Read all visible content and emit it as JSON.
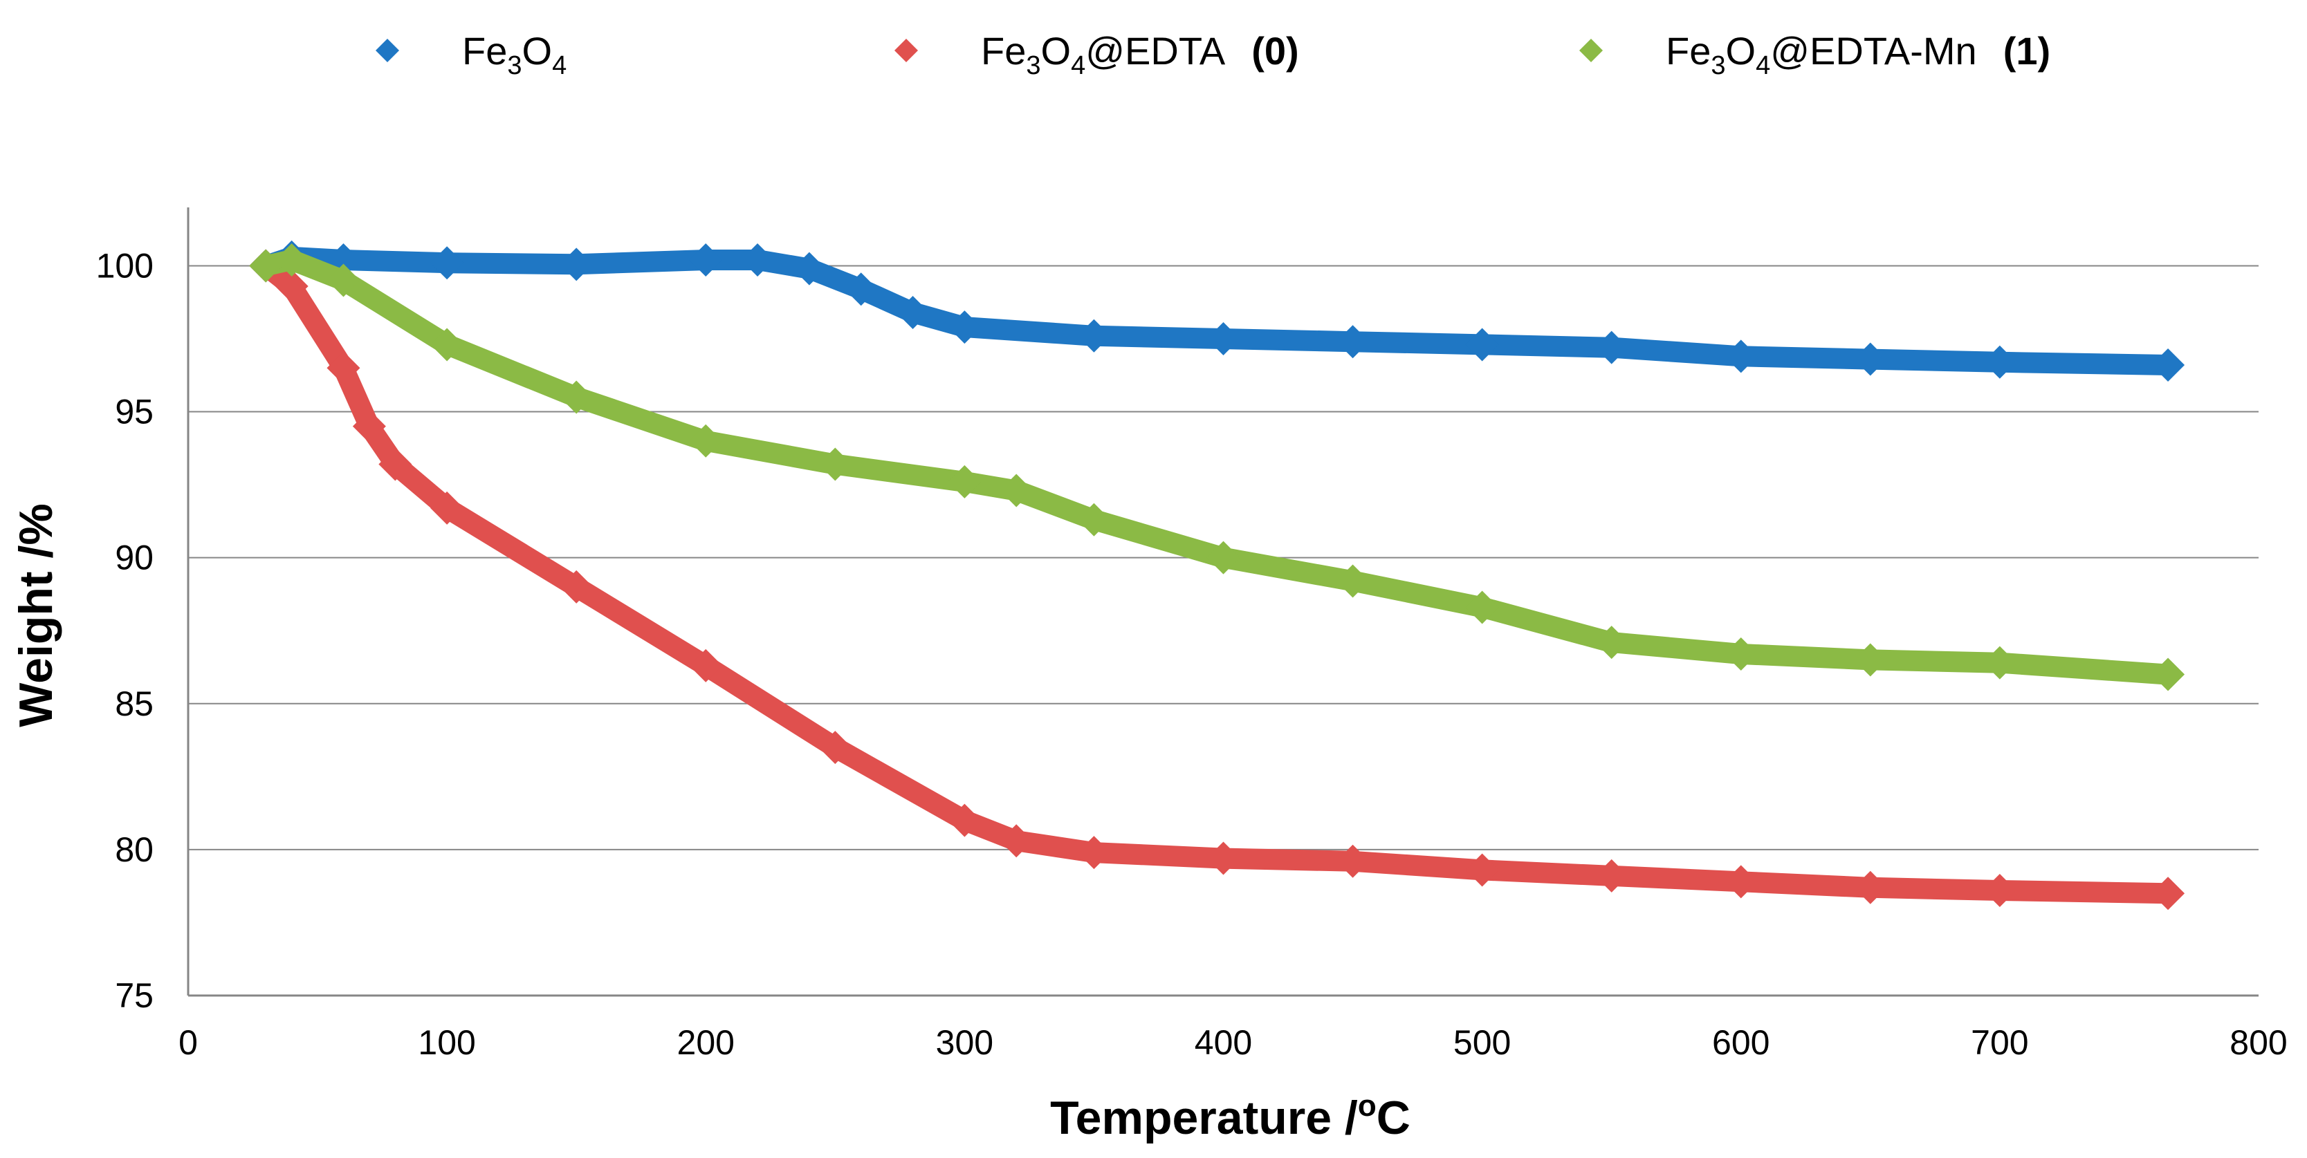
{
  "chart_data": {
    "type": "line",
    "title": "",
    "xlabel": "Temperature /°C",
    "xlabel_parts": [
      "Temperature /",
      "o",
      "C"
    ],
    "ylabel": "Weight /%",
    "xlim": [
      0,
      800
    ],
    "ylim": [
      75,
      102
    ],
    "x_ticks": [
      0,
      100,
      200,
      300,
      400,
      500,
      600,
      700,
      800
    ],
    "y_ticks": [
      75,
      80,
      85,
      90,
      95,
      100
    ],
    "grid": "horizontal",
    "legend_position": "top",
    "series": [
      {
        "name": "Fe3O4",
        "label_parts": [
          "Fe",
          "3",
          "O",
          "4"
        ],
        "tag": "",
        "color": "#1F77C4",
        "x": [
          30,
          40,
          60,
          100,
          150,
          200,
          220,
          240,
          260,
          280,
          300,
          350,
          400,
          450,
          500,
          550,
          600,
          650,
          700,
          765
        ],
        "y": [
          100.0,
          100.3,
          100.2,
          100.1,
          100.05,
          100.2,
          100.2,
          99.9,
          99.2,
          98.4,
          97.9,
          97.6,
          97.5,
          97.4,
          97.3,
          97.2,
          96.9,
          96.8,
          96.7,
          96.6
        ]
      },
      {
        "name": "Fe3O4@EDTA (0)",
        "label_parts": [
          "Fe",
          "3",
          "O",
          "4",
          "@EDTA"
        ],
        "tag": "(0)",
        "color": "#E0504E",
        "x": [
          30,
          40,
          60,
          70,
          80,
          100,
          150,
          200,
          250,
          300,
          320,
          350,
          400,
          450,
          500,
          550,
          600,
          650,
          700,
          765
        ],
        "y": [
          100.0,
          99.3,
          96.5,
          94.5,
          93.2,
          91.7,
          89.0,
          86.3,
          83.5,
          81.0,
          80.3,
          79.9,
          79.7,
          79.6,
          79.3,
          79.1,
          78.9,
          78.7,
          78.6,
          78.5
        ]
      },
      {
        "name": "Fe3O4@EDTA-Mn (1)",
        "label_parts": [
          "Fe",
          "3",
          "O",
          "4",
          "@EDTA-Mn"
        ],
        "tag": "(1)",
        "color": "#8BBA45",
        "x": [
          30,
          40,
          60,
          100,
          150,
          200,
          250,
          300,
          320,
          350,
          400,
          450,
          500,
          550,
          600,
          650,
          700,
          765
        ],
        "y": [
          100.0,
          100.2,
          99.5,
          97.3,
          95.5,
          94.0,
          93.2,
          92.6,
          92.3,
          91.3,
          90.0,
          89.2,
          88.3,
          87.1,
          86.7,
          86.5,
          86.4,
          86.0
        ]
      }
    ]
  }
}
